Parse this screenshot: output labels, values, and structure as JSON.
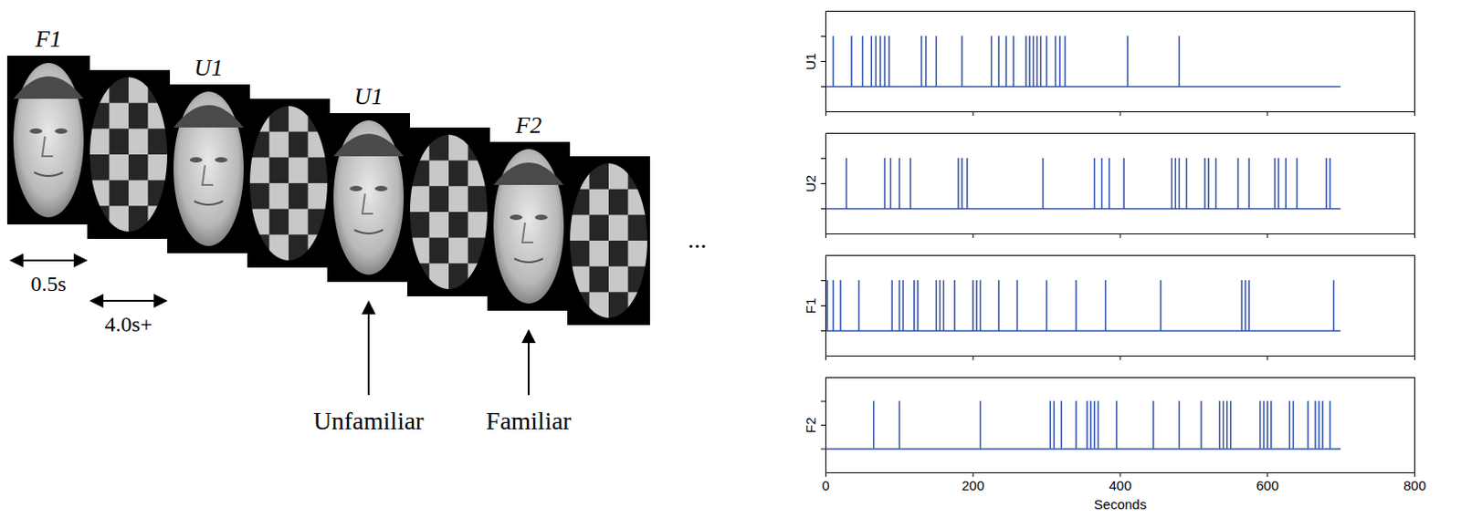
{
  "stimulus_diagram": {
    "frames": [
      {
        "label": "F1",
        "kind": "face"
      },
      {
        "kind": "checkerboard"
      },
      {
        "label": "U1",
        "kind": "face"
      },
      {
        "kind": "checkerboard"
      },
      {
        "label": "U1",
        "kind": "face"
      },
      {
        "kind": "checkerboard"
      },
      {
        "label": "F2",
        "kind": "face"
      },
      {
        "kind": "checkerboard"
      }
    ],
    "durations": [
      {
        "label": "0.5s",
        "frame": 0
      },
      {
        "label": "4.0s+",
        "frame": 1
      }
    ],
    "annotations": [
      {
        "text": "Unfamiliar",
        "frame": 4
      },
      {
        "text": "Familiar",
        "frame": 6
      }
    ],
    "continuation": "..."
  },
  "chart_data": [
    {
      "type": "spike",
      "ylabel": "U1",
      "color": "#2f4fa8",
      "baseline": 0,
      "spike_height": 1,
      "duration": 700,
      "events": [
        10,
        35,
        50,
        62,
        68,
        74,
        80,
        86,
        130,
        136,
        150,
        185,
        225,
        235,
        245,
        255,
        272,
        277,
        282,
        287,
        292,
        300,
        312,
        318,
        325,
        410,
        480
      ],
      "xlim": [
        0,
        800
      ],
      "ylim": [
        -0.5,
        1.5
      ],
      "xticks": [
        0,
        200,
        400,
        600,
        800
      ],
      "yticks": [
        0,
        0.5,
        1
      ],
      "tick_labels": false
    },
    {
      "type": "spike",
      "ylabel": "U2",
      "color": "#2f4fa8",
      "baseline": 0,
      "spike_height": 1,
      "duration": 700,
      "events": [
        28,
        80,
        88,
        100,
        115,
        180,
        185,
        192,
        295,
        365,
        375,
        385,
        405,
        470,
        475,
        480,
        490,
        515,
        520,
        530,
        560,
        575,
        610,
        615,
        625,
        640,
        680,
        685
      ],
      "xlim": [
        0,
        800
      ],
      "ylim": [
        -0.5,
        1.5
      ],
      "xticks": [
        0,
        200,
        400,
        600,
        800
      ],
      "yticks": [
        0,
        0.5,
        1
      ],
      "tick_labels": false
    },
    {
      "type": "spike",
      "ylabel": "F1",
      "color": "#2f4fa8",
      "baseline": 0,
      "spike_height": 1,
      "duration": 700,
      "events": [
        2,
        10,
        20,
        45,
        90,
        100,
        105,
        120,
        125,
        150,
        155,
        160,
        175,
        200,
        205,
        210,
        235,
        260,
        300,
        340,
        380,
        455,
        565,
        570,
        575,
        690
      ],
      "xlim": [
        0,
        800
      ],
      "ylim": [
        -0.5,
        1.5
      ],
      "xticks": [
        0,
        200,
        400,
        600,
        800
      ],
      "yticks": [
        0,
        0.5,
        1
      ],
      "tick_labels": false
    },
    {
      "type": "spike",
      "ylabel": "F2",
      "xlabel": "Seconds",
      "color": "#2f4fa8",
      "baseline": 0,
      "spike_height": 1,
      "duration": 700,
      "events": [
        65,
        100,
        210,
        305,
        310,
        320,
        340,
        355,
        360,
        365,
        370,
        395,
        445,
        480,
        510,
        535,
        540,
        545,
        550,
        590,
        595,
        600,
        605,
        630,
        635,
        655,
        665,
        670,
        675,
        685
      ],
      "xlim": [
        0,
        800
      ],
      "ylim": [
        -0.5,
        1.5
      ],
      "xticks": [
        0,
        200,
        400,
        600,
        800
      ],
      "yticks": [
        0,
        0.5,
        1
      ],
      "tick_labels": "x"
    }
  ]
}
